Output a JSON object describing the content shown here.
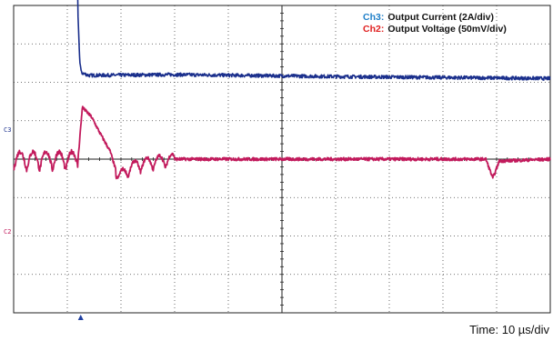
{
  "chart_data": {
    "type": "line",
    "instrument": "oscilloscope",
    "grid": true,
    "grid_divisions": {
      "horizontal": 10,
      "vertical": 8
    },
    "legend_placement": "top-right",
    "timebase": "Time: 10 µs/div",
    "x": {
      "unit": "µs",
      "per_div": 10,
      "range": [
        0,
        100
      ]
    },
    "trigger_marker_time_us": 12.5,
    "series": [
      {
        "channel": "Ch3",
        "name": "Output Current (2A/div)",
        "color": "#1a2f8c",
        "label_color": "#1f7fc8",
        "ground_marker_text": "C3",
        "ground_level_div": 1.0,
        "description_of_steps": "load current steps down at t≈12 µs",
        "points_div": [
          [
            0,
            3.5
          ],
          [
            11.9,
            3.5
          ],
          [
            12.0,
            2.7
          ],
          [
            12.3,
            1.6
          ],
          [
            12.6,
            1.25
          ],
          [
            14,
            1.18
          ],
          [
            30,
            1.2
          ],
          [
            60,
            1.15
          ],
          [
            100,
            1.1
          ]
        ]
      },
      {
        "channel": "Ch2",
        "name": "Output Voltage (50mV/div)",
        "color": "#c21a5c",
        "label_color": "#e02020",
        "ground_marker_text": "C2",
        "ground_level_div": 0.0,
        "ripple_amplitude_div": 0.35,
        "points_div": [
          [
            0,
            0
          ],
          [
            12,
            0
          ],
          [
            12.8,
            1.35
          ],
          [
            14.5,
            1.1
          ],
          [
            16,
            0.7
          ],
          [
            18,
            0.2
          ],
          [
            19.5,
            -0.5
          ],
          [
            21,
            -0.3
          ],
          [
            23,
            -0.15
          ],
          [
            25,
            -0.1
          ],
          [
            27,
            -0.05
          ],
          [
            30,
            0
          ],
          [
            35,
            0
          ],
          [
            40,
            0
          ],
          [
            50,
            0
          ],
          [
            60,
            0
          ],
          [
            70,
            0
          ],
          [
            80,
            0
          ],
          [
            88,
            0
          ],
          [
            89.3,
            -0.5
          ],
          [
            90.5,
            -0.05
          ],
          [
            100,
            0
          ]
        ]
      }
    ]
  },
  "legend": [
    {
      "channel": "Ch3",
      "separator": ":",
      "description": "Output Current (2A/div)"
    },
    {
      "channel": "Ch2",
      "separator": ":",
      "description": "Output Voltage (50mV/div)"
    }
  ],
  "markers": {
    "ch3": "C3",
    "ch2": "C2"
  },
  "footer": {
    "time_label": "Time: 10 µs/div"
  },
  "colors": {
    "grid": "#222222",
    "grid_dotted": "#444444",
    "ch3_trace": "#1a2f8c",
    "ch2_trace": "#c21a5c",
    "ch3_label": "#1f7fc8",
    "ch2_label": "#e02020",
    "trigger": "#1f3fa0"
  }
}
